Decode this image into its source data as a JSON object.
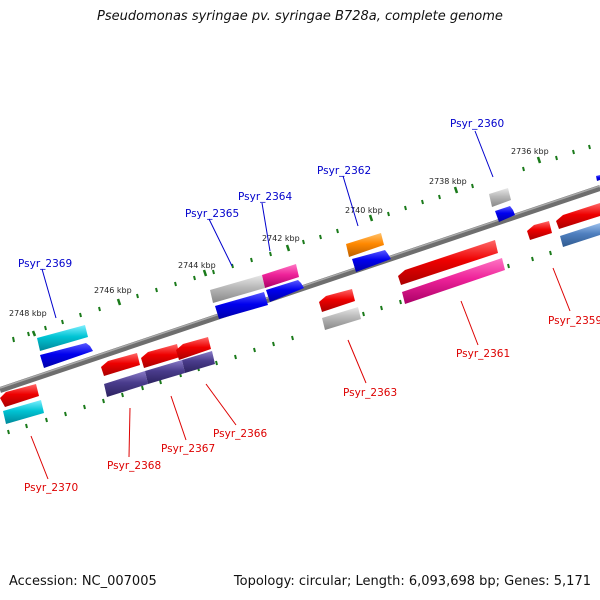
{
  "title": "Pseudomonas syringae pv. syringae B728a, complete genome",
  "footer": {
    "accession": "Accession: NC_007005",
    "topology": "Topology: circular; Length: 6,093,698 bp; Genes: 5,171"
  },
  "ruler": [
    "2736 kbp",
    "2738 kbp",
    "2740 kbp",
    "2742 kbp",
    "2744 kbp",
    "2746 kbp",
    "2748 kbp"
  ],
  "genes_forward": [
    {
      "id": "Psyr_2360",
      "color": "#0000cc"
    },
    {
      "id": "Psyr_2362",
      "color": "#0000cc"
    },
    {
      "id": "Psyr_2364",
      "color": "#0000cc"
    },
    {
      "id": "Psyr_2365",
      "color": "#0000cc"
    },
    {
      "id": "Psyr_2369",
      "color": "#0000cc"
    }
  ],
  "genes_reverse": [
    {
      "id": "Psyr_2359",
      "color": "#dd0000"
    },
    {
      "id": "Psyr_2361",
      "color": "#dd0000"
    },
    {
      "id": "Psyr_2363",
      "color": "#dd0000"
    },
    {
      "id": "Psyr_2366",
      "color": "#dd0000"
    },
    {
      "id": "Psyr_2367",
      "color": "#dd0000"
    },
    {
      "id": "Psyr_2368",
      "color": "#dd0000"
    },
    {
      "id": "Psyr_2370",
      "color": "#dd0000"
    }
  ],
  "colors": {
    "backbone": "#7a7a7a",
    "tick": "#1a7a1a",
    "forward_label": "#0000cc",
    "reverse_label": "#dd0000",
    "gene_red": "#ee0000",
    "gene_blue": "#0000ee",
    "gene_cyan": "#00bbcc",
    "gene_grey": "#b0b0b0",
    "gene_magenta": "#ee2299",
    "gene_orange": "#ff8800",
    "gene_purple": "#4a3c8c",
    "gene_steelblue": "#4f7fbf"
  }
}
